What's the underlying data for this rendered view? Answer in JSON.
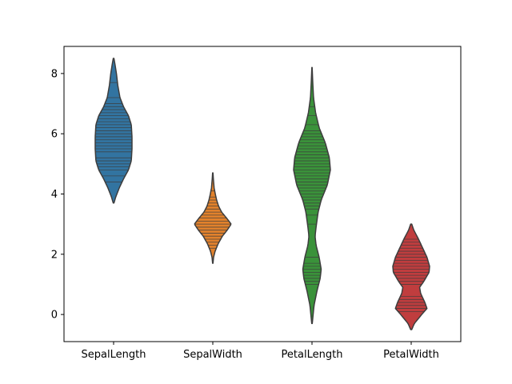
{
  "chart_data": {
    "type": "violin",
    "title": "",
    "xlabel": "",
    "ylabel": "",
    "ylim": [
      -0.9,
      8.9
    ],
    "yticks": [
      0,
      2,
      4,
      6,
      8
    ],
    "inner": "stick",
    "grid": false,
    "categories": [
      "SepalLength",
      "SepalWidth",
      "PetalLength",
      "PetalWidth"
    ],
    "series": [
      {
        "category": "SepalLength",
        "color": "#3274a1",
        "extent": [
          3.7,
          8.5
        ],
        "profile": [
          [
            3.7,
            0.01
          ],
          [
            3.9,
            0.06
          ],
          [
            4.2,
            0.16
          ],
          [
            4.5,
            0.28
          ],
          [
            4.8,
            0.42
          ],
          [
            5.1,
            0.5
          ],
          [
            5.5,
            0.52
          ],
          [
            5.9,
            0.52
          ],
          [
            6.3,
            0.5
          ],
          [
            6.6,
            0.42
          ],
          [
            6.9,
            0.28
          ],
          [
            7.2,
            0.18
          ],
          [
            7.6,
            0.12
          ],
          [
            8.0,
            0.08
          ],
          [
            8.3,
            0.04
          ],
          [
            8.5,
            0.01
          ]
        ],
        "observations": [
          4.4,
          4.6,
          4.8,
          4.9,
          5.0,
          5.1,
          5.2,
          5.4,
          5.5,
          5.6,
          5.7,
          5.8,
          5.9,
          6.0,
          6.1,
          6.2,
          6.3,
          6.4,
          6.5,
          6.6,
          6.7,
          6.8,
          6.9,
          7.0,
          7.2,
          7.7
        ]
      },
      {
        "category": "SepalWidth",
        "color": "#e1812c",
        "extent": [
          1.7,
          4.7
        ],
        "profile": [
          [
            1.7,
            0.01
          ],
          [
            1.9,
            0.04
          ],
          [
            2.1,
            0.12
          ],
          [
            2.35,
            0.28
          ],
          [
            2.6,
            0.5
          ],
          [
            2.8,
            0.75
          ],
          [
            3.0,
            0.96
          ],
          [
            3.2,
            0.72
          ],
          [
            3.4,
            0.46
          ],
          [
            3.6,
            0.3
          ],
          [
            3.8,
            0.2
          ],
          [
            4.0,
            0.13
          ],
          [
            4.2,
            0.07
          ],
          [
            4.5,
            0.03
          ],
          [
            4.7,
            0.01
          ]
        ],
        "observations": [
          2.2,
          2.3,
          2.4,
          2.5,
          2.6,
          2.7,
          2.8,
          2.9,
          3.0,
          3.1,
          3.2,
          3.3,
          3.4,
          3.5,
          3.6,
          3.7,
          3.8,
          3.9,
          4.1
        ]
      },
      {
        "category": "PetalLength",
        "color": "#3a923a",
        "extent": [
          -0.3,
          8.2
        ],
        "profile": [
          [
            -0.3,
            0.005
          ],
          [
            0.3,
            0.04
          ],
          [
            0.8,
            0.1
          ],
          [
            1.2,
            0.16
          ],
          [
            1.5,
            0.18
          ],
          [
            1.9,
            0.14
          ],
          [
            2.3,
            0.08
          ],
          [
            2.6,
            0.06
          ],
          [
            2.9,
            0.08
          ],
          [
            3.4,
            0.12
          ],
          [
            3.8,
            0.18
          ],
          [
            4.3,
            0.3
          ],
          [
            4.8,
            0.36
          ],
          [
            5.2,
            0.34
          ],
          [
            5.7,
            0.26
          ],
          [
            6.2,
            0.14
          ],
          [
            6.7,
            0.07
          ],
          [
            7.2,
            0.03
          ],
          [
            7.7,
            0.015
          ],
          [
            8.2,
            0.003
          ]
        ],
        "observations": [
          1.0,
          1.1,
          1.2,
          1.3,
          1.4,
          1.5,
          1.6,
          1.7,
          1.9,
          3.0,
          3.3,
          3.5,
          3.6,
          3.7,
          3.8,
          3.9,
          4.0,
          4.1,
          4.2,
          4.3,
          4.4,
          4.5,
          4.6,
          4.7,
          4.8,
          4.9,
          5.0,
          5.1,
          5.2,
          5.3,
          5.4,
          5.5,
          5.6,
          5.7,
          5.8,
          5.9,
          6.0,
          6.1,
          6.3,
          6.6,
          6.9
        ]
      },
      {
        "category": "PetalWidth",
        "color": "#c03d3e",
        "extent": [
          -0.5,
          3.0
        ],
        "profile": [
          [
            -0.5,
            0.01
          ],
          [
            -0.3,
            0.06
          ],
          [
            0.0,
            0.2
          ],
          [
            0.2,
            0.3
          ],
          [
            0.4,
            0.26
          ],
          [
            0.7,
            0.18
          ],
          [
            0.9,
            0.16
          ],
          [
            1.1,
            0.24
          ],
          [
            1.4,
            0.34
          ],
          [
            1.6,
            0.35
          ],
          [
            1.9,
            0.3
          ],
          [
            2.2,
            0.22
          ],
          [
            2.5,
            0.14
          ],
          [
            2.8,
            0.05
          ],
          [
            3.0,
            0.01
          ]
        ],
        "observations": [
          0.1,
          0.2,
          0.3,
          0.4,
          0.5,
          0.6,
          1.0,
          1.1,
          1.2,
          1.3,
          1.4,
          1.5,
          1.6,
          1.7,
          1.8,
          1.9,
          2.0,
          2.1,
          2.2,
          2.3,
          2.4,
          2.5
        ]
      }
    ]
  }
}
